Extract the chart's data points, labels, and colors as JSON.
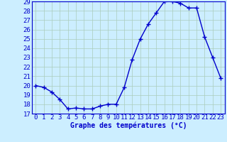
{
  "hours": [
    0,
    1,
    2,
    3,
    4,
    5,
    6,
    7,
    8,
    9,
    10,
    11,
    12,
    13,
    14,
    15,
    16,
    17,
    18,
    19,
    20,
    21,
    22,
    23
  ],
  "temps": [
    20.0,
    19.8,
    19.3,
    18.5,
    17.5,
    17.6,
    17.5,
    17.5,
    17.8,
    18.0,
    18.0,
    19.8,
    22.8,
    25.0,
    26.6,
    27.8,
    29.0,
    29.0,
    28.8,
    28.3,
    28.3,
    25.2,
    23.0,
    20.8
  ],
  "line_color": "#0000cc",
  "bg_color": "#cceeff",
  "grid_color": "#aaccbb",
  "xlabel": "Graphe des températures (°C)",
  "ylim": [
    17,
    29
  ],
  "xlim_min": -0.5,
  "xlim_max": 23.5,
  "yticks": [
    17,
    18,
    19,
    20,
    21,
    22,
    23,
    24,
    25,
    26,
    27,
    28,
    29
  ],
  "xticks": [
    0,
    1,
    2,
    3,
    4,
    5,
    6,
    7,
    8,
    9,
    10,
    11,
    12,
    13,
    14,
    15,
    16,
    17,
    18,
    19,
    20,
    21,
    22,
    23
  ],
  "xlabel_color": "#0000cc",
  "xlabel_fontsize": 7,
  "tick_fontsize": 6.5,
  "tick_color": "#0000cc",
  "marker": "+",
  "marker_size": 4,
  "linewidth": 1.0
}
